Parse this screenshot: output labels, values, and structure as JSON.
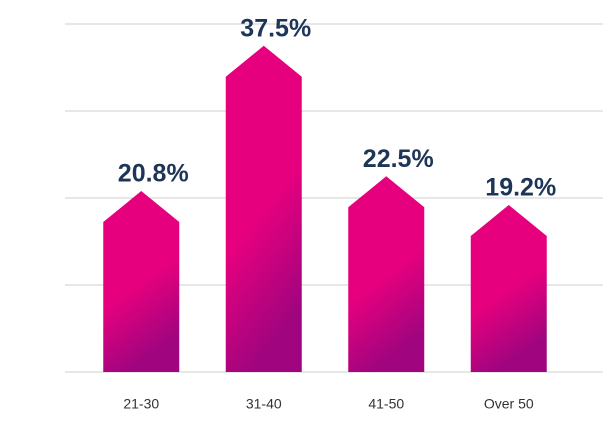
{
  "chart_data": {
    "type": "bar",
    "categories": [
      "21-30",
      "31-40",
      "41-50",
      "Over 50"
    ],
    "values": [
      20.8,
      37.5,
      22.5,
      19.2
    ],
    "value_labels": [
      "20.8%",
      "37.5%",
      "22.5%",
      "19.2%"
    ],
    "color": "#e6007e",
    "ylim": [
      0,
      40
    ],
    "yticks": [
      0,
      10,
      20,
      30,
      40
    ],
    "grid": true
  }
}
